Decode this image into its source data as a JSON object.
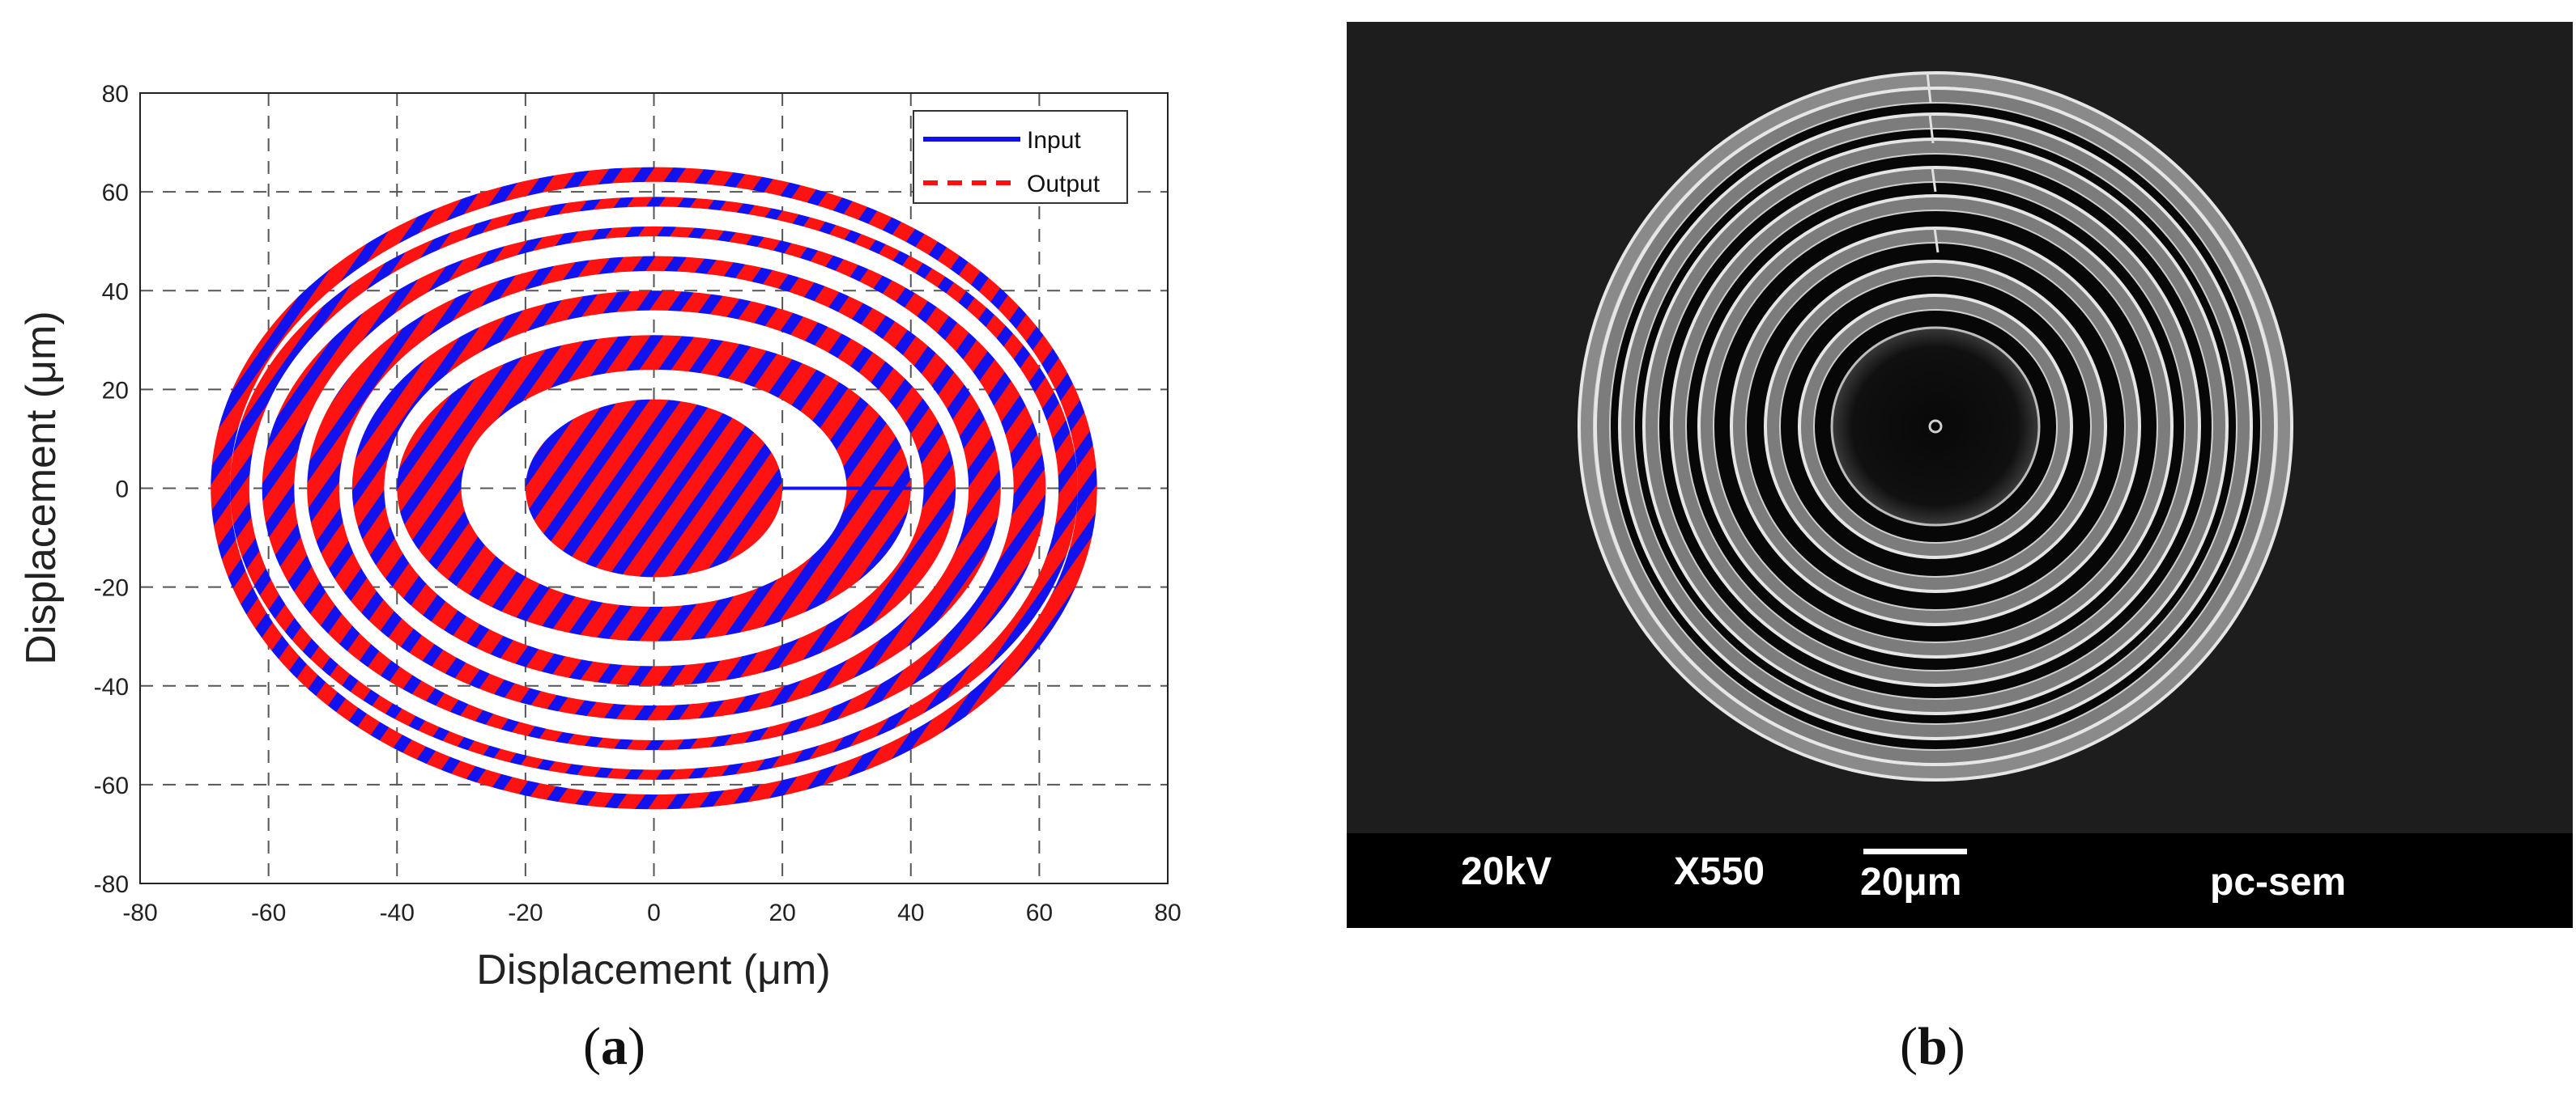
{
  "chart_data": {
    "type": "line",
    "title": "",
    "xlabel": "Displacement (μm)",
    "ylabel": "Displacement (μm)",
    "xlim": [
      -80,
      80
    ],
    "ylim": [
      -80,
      80
    ],
    "xticks": [
      -80,
      -60,
      -40,
      -20,
      0,
      20,
      40,
      60,
      80
    ],
    "yticks": [
      -80,
      -60,
      -40,
      -20,
      0,
      20,
      40,
      60,
      80
    ],
    "grid": true,
    "legend_position": "top-right",
    "series": [
      {
        "name": "Input",
        "color": "#1010ee",
        "style": "solid"
      },
      {
        "name": "Output",
        "color": "#ff1010",
        "style": "dashed"
      }
    ],
    "bands": [
      {
        "rx": [
          0,
          20
        ],
        "ry": [
          0,
          18
        ]
      },
      {
        "rx": [
          30,
          40
        ],
        "ry": [
          24,
          31
        ]
      },
      {
        "rx": [
          42,
          47
        ],
        "ry": [
          36,
          40
        ]
      },
      {
        "rx": [
          49,
          54
        ],
        "ry": [
          44,
          47
        ]
      },
      {
        "rx": [
          56,
          61
        ],
        "ry": [
          51,
          53
        ]
      },
      {
        "rx": [
          63,
          66
        ],
        "ry": [
          57,
          59
        ]
      },
      {
        "rx": [
          66,
          69
        ],
        "ry": [
          62,
          65
        ]
      }
    ]
  },
  "panel_a": {
    "label": "a"
  },
  "panel_b": {
    "label": "b",
    "voltage": "20kV",
    "magnification": "X550",
    "scale": "20μm",
    "instrument": "pc-sem"
  }
}
